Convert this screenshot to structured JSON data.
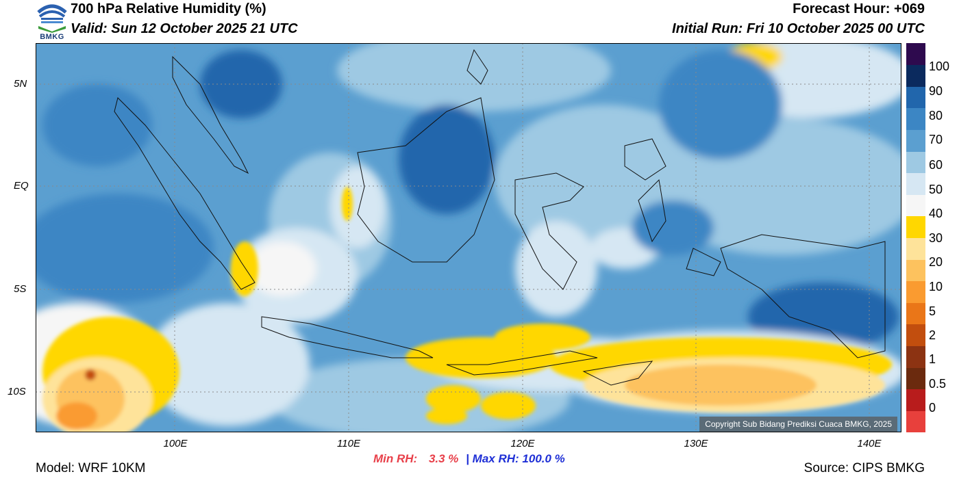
{
  "header": {
    "title": "700 hPa Relative Humidity (%)",
    "valid": "Valid: Sun 12 October 2025 21 UTC",
    "forecast_hour": "Forecast Hour: +069",
    "initial_run": "Initial Run: Fri 10 October 2025 00 UTC"
  },
  "logo": {
    "text": "BMKG"
  },
  "map": {
    "lat_labels": [
      "5N",
      "EQ",
      "5S",
      "10S"
    ],
    "lon_labels": [
      "100E",
      "110E",
      "120E",
      "130E",
      "140E"
    ],
    "copyright": "Copyright Sub Bidang Prediksi Cuaca BMKG, 2025"
  },
  "colorbar": {
    "labels": [
      "100",
      "90",
      "80",
      "70",
      "60",
      "50",
      "40",
      "30",
      "20",
      "10",
      "5",
      "2",
      "1",
      "0.5",
      "0"
    ],
    "colors": [
      "#e8403c",
      "#b81c1c",
      "#6b2a0e",
      "#8c3312",
      "#c24e0e",
      "#ea7618",
      "#fa9b30",
      "#fdc25e",
      "#fee39a",
      "#ffd700",
      "#f6f6f6",
      "#d6e7f3",
      "#9ec9e3",
      "#5b9fd0",
      "#3c86c4",
      "#2166ac",
      "#0b2a5e",
      "#2e0a4e"
    ]
  },
  "stats": {
    "min_label": "Min RH:",
    "min_value": "3.3 %",
    "separator": "|",
    "max_label": "Max RH:",
    "max_value": "100.0 %"
  },
  "footer": {
    "model": "Model: WRF 10KM",
    "source": "Source: CIPS BMKG"
  }
}
